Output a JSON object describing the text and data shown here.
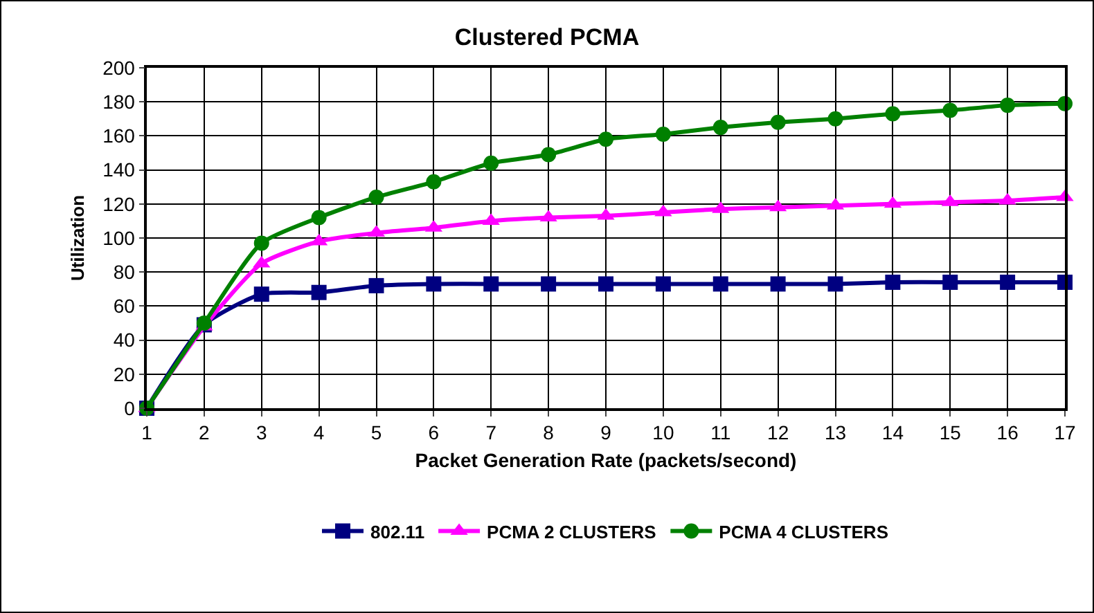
{
  "chart_data": {
    "type": "line",
    "title": "Clustered PCMA",
    "xlabel": "Packet Generation Rate (packets/second)",
    "ylabel": "Utilization",
    "x": [
      1,
      2,
      3,
      4,
      5,
      6,
      7,
      8,
      9,
      10,
      11,
      12,
      13,
      14,
      15,
      16,
      17
    ],
    "series": [
      {
        "name": "802.11",
        "color": "#000080",
        "marker": "square",
        "values": [
          0,
          49,
          67,
          68,
          72,
          73,
          73,
          73,
          73,
          73,
          73,
          73,
          73,
          74,
          74,
          74,
          74
        ]
      },
      {
        "name": "PCMA 2 CLUSTERS",
        "color": "#ff00ff",
        "marker": "triangle",
        "values": [
          0,
          48,
          85,
          98,
          103,
          106,
          110,
          112,
          113,
          115,
          117,
          118,
          119,
          120,
          121,
          122,
          124
        ]
      },
      {
        "name": "PCMA 4 CLUSTERS",
        "color": "#008000",
        "marker": "circle",
        "values": [
          0,
          50,
          97,
          112,
          124,
          133,
          144,
          149,
          158,
          161,
          165,
          168,
          170,
          173,
          175,
          178,
          179
        ]
      }
    ],
    "xlim": [
      1,
      17
    ],
    "xticks": [
      1,
      2,
      3,
      4,
      5,
      6,
      7,
      8,
      9,
      10,
      11,
      12,
      13,
      14,
      15,
      16,
      17
    ],
    "ylim": [
      0,
      200
    ],
    "yticks": [
      0,
      20,
      40,
      60,
      80,
      100,
      120,
      140,
      160,
      180,
      200
    ],
    "grid": true,
    "legend": "bottom",
    "line_style": "solid"
  }
}
